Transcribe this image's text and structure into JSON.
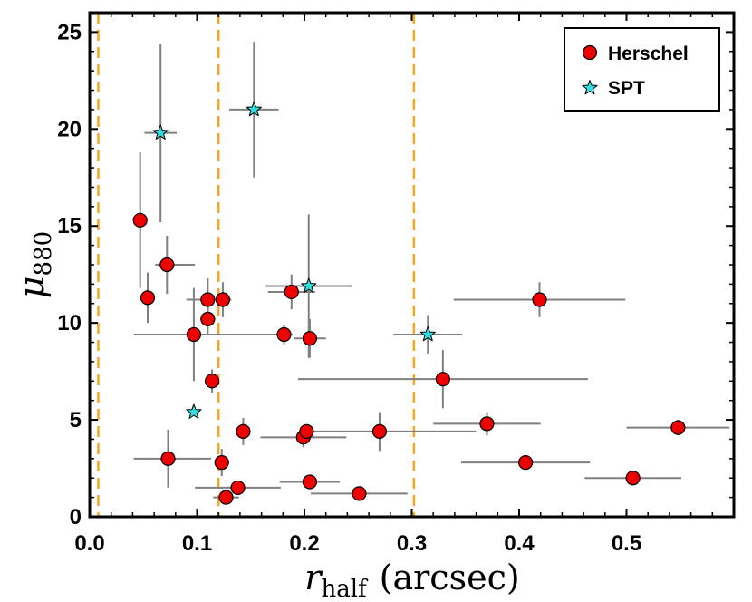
{
  "chart_data": {
    "type": "scatter",
    "xlabel": "r_half (arcsec)",
    "xlabel_main": "r",
    "xlabel_sub": "half",
    "xlabel_unit": "(arcsec)",
    "ylabel": "μ_880",
    "ylabel_main": "μ",
    "ylabel_sub": "880",
    "xlim": [
      0.0,
      0.6
    ],
    "ylim": [
      0,
      26
    ],
    "xticks": [
      0.0,
      0.1,
      0.2,
      0.3,
      0.4,
      0.5
    ],
    "xtick_labels": [
      "0.0",
      "0.1",
      "0.2",
      "0.3",
      "0.4",
      "0.5"
    ],
    "yticks": [
      0,
      5,
      10,
      15,
      20,
      25
    ],
    "ytick_labels": [
      "0",
      "5",
      "10",
      "15",
      "20",
      "25"
    ],
    "vlines": [
      0.008,
      0.12,
      0.302
    ],
    "vline_color": "#f5a623",
    "errorbar_color": "#808080",
    "legend_position": "top-right",
    "series": [
      {
        "name": "Herschel",
        "marker": "circle",
        "color": "#ee0000",
        "points": [
          {
            "x": 0.047,
            "y": 15.3,
            "xerr": [
              0.0,
              0.0
            ],
            "yerr": [
              3.5,
              3.5
            ]
          },
          {
            "x": 0.054,
            "y": 11.3,
            "xerr": [
              0.0,
              0.0
            ],
            "yerr": [
              1.3,
              1.3
            ]
          },
          {
            "x": 0.072,
            "y": 13.0,
            "xerr": [
              0.011,
              0.026
            ],
            "yerr": [
              1.5,
              1.5
            ]
          },
          {
            "x": 0.073,
            "y": 3.0,
            "xerr": [
              0.032,
              0.04
            ],
            "yerr": [
              1.5,
              1.5
            ]
          },
          {
            "x": 0.097,
            "y": 9.4,
            "xerr": [
              0.056,
              0.092
            ],
            "yerr": [
              2.4,
              2.4
            ]
          },
          {
            "x": 0.11,
            "y": 11.2,
            "xerr": [
              0.02,
              0.022
            ],
            "yerr": [
              1.1,
              1.1
            ]
          },
          {
            "x": 0.11,
            "y": 10.2,
            "xerr": [
              0.007,
              0.007
            ],
            "yerr": [
              0.8,
              0.8
            ]
          },
          {
            "x": 0.114,
            "y": 7.0,
            "xerr": [
              0.0,
              0.0
            ],
            "yerr": [
              0.6,
              0.6
            ]
          },
          {
            "x": 0.124,
            "y": 11.2,
            "xerr": [
              0.0,
              0.0
            ],
            "yerr": [
              0.9,
              0.9
            ]
          },
          {
            "x": 0.123,
            "y": 2.8,
            "xerr": [
              0.0,
              0.0
            ],
            "yerr": [
              0.7,
              0.7
            ]
          },
          {
            "x": 0.127,
            "y": 1.0,
            "xerr": [
              0.012,
              0.012
            ],
            "yerr": [
              0.3,
              0.3
            ]
          },
          {
            "x": 0.138,
            "y": 1.5,
            "xerr": [
              0.04,
              0.04
            ],
            "yerr": [
              0.3,
              0.3
            ]
          },
          {
            "x": 0.143,
            "y": 4.4,
            "xerr": [
              0.0,
              0.0
            ],
            "yerr": [
              0.7,
              0.7
            ]
          },
          {
            "x": 0.181,
            "y": 9.4,
            "xerr": [
              0.0,
              0.0
            ],
            "yerr": [
              0.5,
              0.5
            ]
          },
          {
            "x": 0.188,
            "y": 11.6,
            "xerr": [
              0.022,
              0.022
            ],
            "yerr": [
              0.9,
              0.9
            ]
          },
          {
            "x": 0.199,
            "y": 4.1,
            "xerr": [
              0.04,
              0.04
            ],
            "yerr": [
              0.5,
              0.5
            ]
          },
          {
            "x": 0.202,
            "y": 4.4,
            "xerr": [
              0.0,
              0.0
            ],
            "yerr": [
              0.3,
              0.3
            ]
          },
          {
            "x": 0.205,
            "y": 9.2,
            "xerr": [
              0.015,
              0.015
            ],
            "yerr": [
              1.0,
              1.0
            ]
          },
          {
            "x": 0.205,
            "y": 1.8,
            "xerr": [
              0.028,
              0.028
            ],
            "yerr": [
              0.3,
              0.3
            ]
          },
          {
            "x": 0.251,
            "y": 1.2,
            "xerr": [
              0.045,
              0.045
            ],
            "yerr": [
              0.2,
              0.2
            ]
          },
          {
            "x": 0.27,
            "y": 4.4,
            "xerr": [
              0.075,
              0.09
            ],
            "yerr": [
              1.0,
              1.0
            ]
          },
          {
            "x": 0.329,
            "y": 7.1,
            "xerr": [
              0.135,
              0.135
            ],
            "yerr": [
              1.5,
              1.5
            ]
          },
          {
            "x": 0.37,
            "y": 4.8,
            "xerr": [
              0.05,
              0.05
            ],
            "yerr": [
              0.6,
              0.6
            ]
          },
          {
            "x": 0.406,
            "y": 2.8,
            "xerr": [
              0.06,
              0.06
            ],
            "yerr": [
              0.3,
              0.3
            ]
          },
          {
            "x": 0.419,
            "y": 11.2,
            "xerr": [
              0.08,
              0.08
            ],
            "yerr": [
              0.9,
              0.9
            ]
          },
          {
            "x": 0.506,
            "y": 2.0,
            "xerr": [
              0.045,
              0.045
            ],
            "yerr": [
              0.2,
              0.2
            ]
          },
          {
            "x": 0.548,
            "y": 4.6,
            "xerr": [
              0.048,
              0.048
            ],
            "yerr": [
              0.4,
              0.4
            ]
          }
        ]
      },
      {
        "name": "SPT",
        "marker": "star",
        "color": "#33dddd",
        "points": [
          {
            "x": 0.066,
            "y": 19.8,
            "xerr": [
              0.015,
              0.015
            ],
            "yerr": [
              4.6,
              4.6
            ]
          },
          {
            "x": 0.097,
            "y": 5.4,
            "xerr": [
              0.0,
              0.0
            ],
            "yerr": [
              0.0,
              0.0
            ]
          },
          {
            "x": 0.153,
            "y": 21.0,
            "xerr": [
              0.023,
              0.023
            ],
            "yerr": [
              3.5,
              3.5
            ]
          },
          {
            "x": 0.204,
            "y": 11.9,
            "xerr": [
              0.04,
              0.04
            ],
            "yerr": [
              3.7,
              3.7
            ]
          },
          {
            "x": 0.315,
            "y": 9.4,
            "xerr": [
              0.032,
              0.032
            ],
            "yerr": [
              1.0,
              1.0
            ]
          }
        ]
      }
    ]
  }
}
